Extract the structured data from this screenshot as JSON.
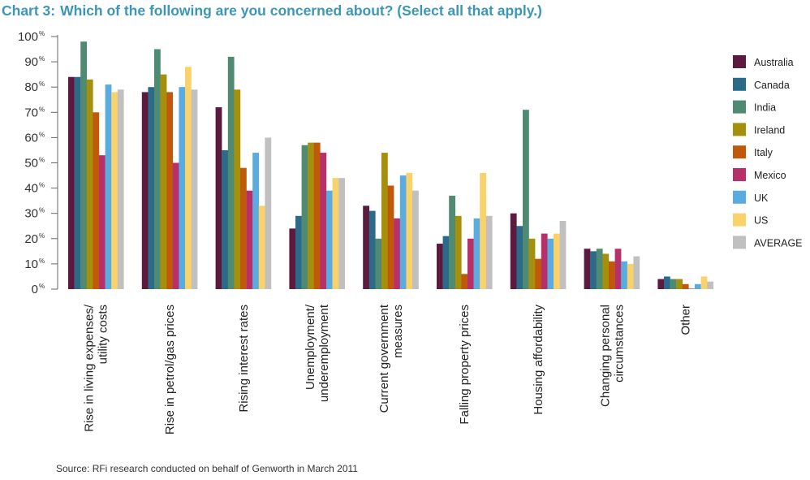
{
  "header": {
    "chart_number": "Chart 3:",
    "question": "Which of the following are you concerned about? (Select all that apply.)"
  },
  "footer": {
    "source": "Source:  RFi research conducted on behalf of Genworth in March 2011"
  },
  "colors": {
    "Australia": "#5b1a3e",
    "Canada": "#2c6a8a",
    "India": "#4f8a72",
    "Ireland": "#a4900c",
    "Italy": "#c05a0a",
    "Mexico": "#b8306a",
    "UK": "#5aace0",
    "US": "#fbd26a",
    "AVERAGE": "#c0c0c0",
    "title": "#3b97b5"
  },
  "chart_data": {
    "type": "bar",
    "title": "Which of the following are you concerned about? (Select all that apply.)",
    "xlabel": "",
    "ylabel": "",
    "ylim": [
      0,
      100
    ],
    "yticks": [
      0,
      10,
      20,
      30,
      40,
      50,
      60,
      70,
      80,
      90,
      100
    ],
    "ytick_suffix": "%",
    "legend_position": "right",
    "categories": [
      [
        "Rise in living expenses/",
        "utility costs"
      ],
      [
        "Rise in petrol/gas prices"
      ],
      [
        "Rising interest rates"
      ],
      [
        "Unemployment/",
        "underemployment"
      ],
      [
        "Current government",
        "measures"
      ],
      [
        "Falling property prices"
      ],
      [
        "Housing affordability"
      ],
      [
        "Changing personal",
        "circumstances"
      ],
      [
        "Other"
      ]
    ],
    "series": [
      {
        "name": "Australia",
        "values": [
          84,
          78,
          72,
          24,
          33,
          18,
          30,
          16,
          4
        ]
      },
      {
        "name": "Canada",
        "values": [
          84,
          80,
          55,
          29,
          31,
          21,
          25,
          15,
          5
        ]
      },
      {
        "name": "India",
        "values": [
          98,
          95,
          92,
          57,
          20,
          37,
          71,
          16,
          4
        ]
      },
      {
        "name": "Ireland",
        "values": [
          83,
          85,
          79,
          58,
          54,
          29,
          20,
          14,
          4
        ]
      },
      {
        "name": "Italy",
        "values": [
          70,
          78,
          48,
          58,
          41,
          6,
          12,
          11,
          2
        ]
      },
      {
        "name": "Mexico",
        "values": [
          53,
          50,
          39,
          54,
          28,
          20,
          22,
          16,
          0
        ]
      },
      {
        "name": "UK",
        "values": [
          81,
          80,
          54,
          39,
          45,
          28,
          20,
          11,
          2
        ]
      },
      {
        "name": "US",
        "values": [
          78,
          88,
          33,
          44,
          46,
          46,
          22,
          10,
          5
        ]
      },
      {
        "name": "AVERAGE",
        "values": [
          79,
          79,
          60,
          44,
          39,
          29,
          27,
          13,
          3
        ]
      }
    ]
  }
}
